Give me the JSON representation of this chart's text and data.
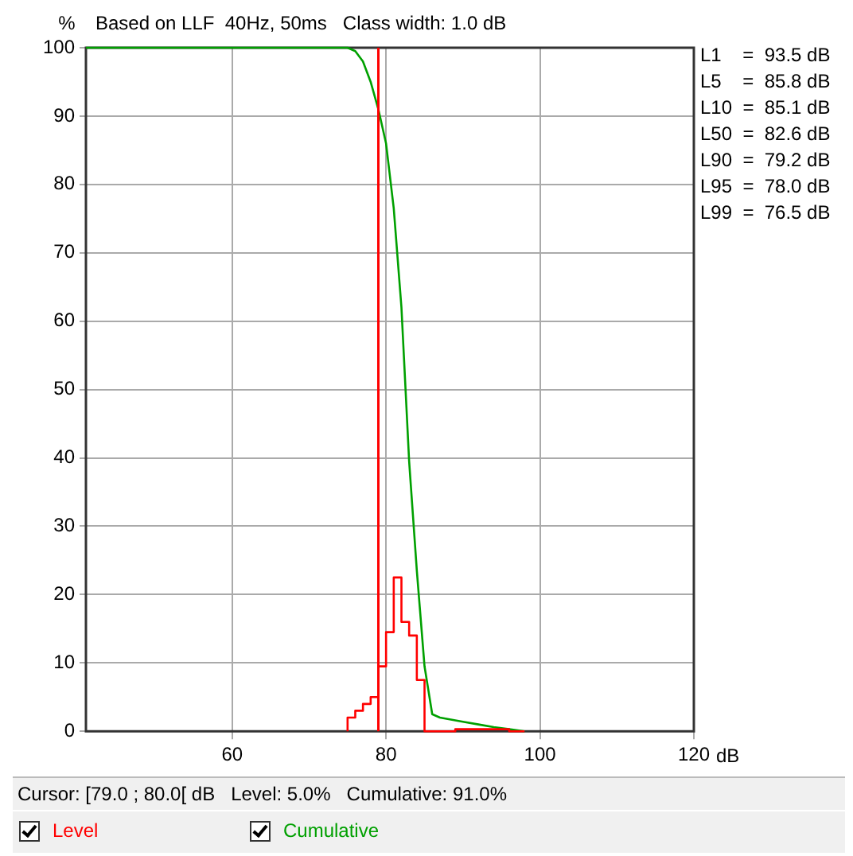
{
  "chart_data": {
    "type": "line",
    "title": "Based on LLF  40Hz, 50ms   Class width: 1.0 dB",
    "xlabel": "dB",
    "ylabel": "%",
    "xlim": [
      41,
      120
    ],
    "xticks": [
      60,
      80,
      100,
      120
    ],
    "ylim": [
      0,
      100
    ],
    "yticks": [
      0,
      10,
      20,
      30,
      40,
      50,
      60,
      70,
      80,
      90,
      100
    ],
    "grid": true,
    "legend": "bottom",
    "marker": "none",
    "series": [
      {
        "name": "Level",
        "type": "step",
        "color": "#ff0000",
        "x": [
          75,
          76,
          77,
          78,
          79,
          80,
          81,
          82,
          83,
          84,
          85,
          86,
          87,
          88,
          89,
          90,
          91,
          92,
          93,
          94,
          95,
          96,
          97,
          98
        ],
        "values": [
          0,
          2,
          3,
          4,
          5,
          9.5,
          14.5,
          22.5,
          16,
          14,
          7.5,
          0,
          0,
          0,
          0,
          0.3,
          0.3,
          0.3,
          0.3,
          0.3,
          0.3,
          0.3,
          0,
          0
        ]
      },
      {
        "name": "Cumulative",
        "color": "#00a000",
        "x": [
          41,
          75,
          76,
          77,
          78,
          79,
          80,
          81,
          82,
          83,
          84,
          85,
          86,
          87,
          88,
          90,
          92,
          94,
          96,
          98
        ],
        "values": [
          100,
          100,
          99.5,
          98,
          95,
          91,
          86,
          76.5,
          62,
          39.5,
          23.5,
          9.5,
          2.5,
          2,
          1.8,
          1.4,
          1,
          0.6,
          0.3,
          0
        ]
      }
    ],
    "ref_lines": [
      {
        "axis": "x",
        "value": 79,
        "color": "#ff0000"
      }
    ],
    "annotations": [
      "L1    =  93.5 dB",
      "L5    =  85.8 dB",
      "L10  =  85.1 dB",
      "L50  =  82.6 dB",
      "L90  =  79.2 dB",
      "L95  =  78.0 dB",
      "L99  =  76.5 dB",
      "Cursor: [79.0 ; 80.0[ dB   Level: 5.0%   Cumulative: 91.0%"
    ]
  }
}
